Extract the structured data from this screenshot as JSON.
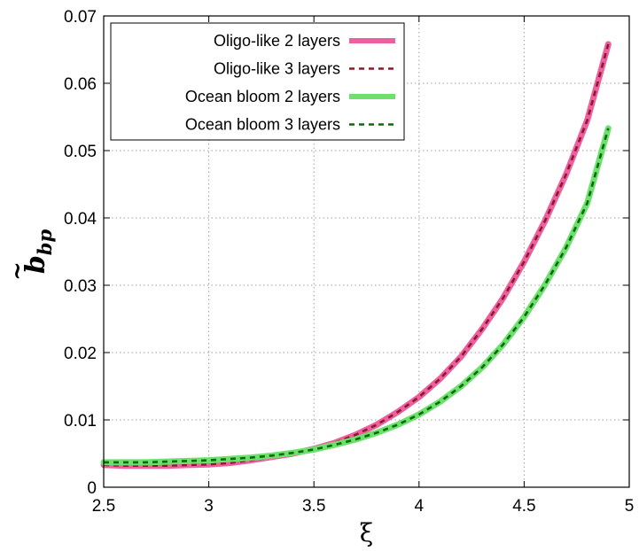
{
  "chart_data": {
    "type": "line",
    "xlabel": "ξ",
    "ylabel": {
      "base": "b",
      "tilde": "~",
      "subscript": "bp"
    },
    "xlim": [
      2.5,
      5
    ],
    "ylim": [
      0,
      0.07
    ],
    "xticks": [
      2.5,
      3,
      3.5,
      4,
      4.5,
      5
    ],
    "xtick_labels": [
      "2.5",
      "3",
      "3.5",
      "4",
      "4.5",
      "5"
    ],
    "yticks": [
      0,
      0.01,
      0.02,
      0.03,
      0.04,
      0.05,
      0.06,
      0.07
    ],
    "ytick_labels": [
      "0",
      "0.01",
      "0.02",
      "0.03",
      "0.04",
      "0.05",
      "0.06",
      "0.07"
    ],
    "grid": true,
    "legend_position": "top-left",
    "series": [
      {
        "name": "Oligo-like 2 layers",
        "color": "#ee5fa0",
        "style": "solid",
        "x": [
          2.5,
          2.6,
          2.7,
          2.8,
          2.9,
          3.0,
          3.1,
          3.2,
          3.3,
          3.4,
          3.5,
          3.6,
          3.7,
          3.8,
          3.9,
          4.0,
          4.1,
          4.2,
          4.3,
          4.4,
          4.5,
          4.6,
          4.7,
          4.8,
          4.9
        ],
        "y": [
          0.0033,
          0.0032,
          0.0032,
          0.0032,
          0.0033,
          0.0034,
          0.0036,
          0.004,
          0.0045,
          0.005,
          0.0057,
          0.0066,
          0.0078,
          0.0093,
          0.0112,
          0.0134,
          0.0161,
          0.0194,
          0.0235,
          0.0281,
          0.0335,
          0.0396,
          0.0465,
          0.0545,
          0.0658
        ]
      },
      {
        "name": "Oligo-like 3 layers",
        "color": "#8b1a2b",
        "style": "dashed",
        "x": [
          2.5,
          2.6,
          2.7,
          2.8,
          2.9,
          3.0,
          3.1,
          3.2,
          3.3,
          3.4,
          3.5,
          3.6,
          3.7,
          3.8,
          3.9,
          4.0,
          4.1,
          4.2,
          4.3,
          4.4,
          4.5,
          4.6,
          4.7,
          4.8,
          4.9
        ],
        "y": [
          0.0033,
          0.0032,
          0.0032,
          0.0032,
          0.0033,
          0.0034,
          0.0036,
          0.004,
          0.0045,
          0.005,
          0.0057,
          0.0066,
          0.0078,
          0.0093,
          0.0112,
          0.0134,
          0.0161,
          0.0194,
          0.0235,
          0.0281,
          0.0335,
          0.0396,
          0.0465,
          0.0545,
          0.0658
        ]
      },
      {
        "name": "Ocean bloom 2 layers",
        "color": "#6ee06e",
        "style": "solid",
        "x": [
          2.5,
          2.6,
          2.7,
          2.8,
          2.9,
          3.0,
          3.1,
          3.2,
          3.3,
          3.4,
          3.5,
          3.6,
          3.7,
          3.8,
          3.9,
          4.0,
          4.1,
          4.2,
          4.3,
          4.4,
          4.5,
          4.6,
          4.7,
          4.8,
          4.9
        ],
        "y": [
          0.0037,
          0.0037,
          0.0037,
          0.0038,
          0.0039,
          0.004,
          0.0042,
          0.0044,
          0.0047,
          0.0051,
          0.0056,
          0.0063,
          0.0071,
          0.0081,
          0.0093,
          0.0108,
          0.0127,
          0.015,
          0.0178,
          0.0212,
          0.0253,
          0.0301,
          0.0356,
          0.0422,
          0.0533
        ]
      },
      {
        "name": "Ocean bloom 3 layers",
        "color": "#0b6b0b",
        "style": "dashed",
        "x": [
          2.5,
          2.6,
          2.7,
          2.8,
          2.9,
          3.0,
          3.1,
          3.2,
          3.3,
          3.4,
          3.5,
          3.6,
          3.7,
          3.8,
          3.9,
          4.0,
          4.1,
          4.2,
          4.3,
          4.4,
          4.5,
          4.6,
          4.7,
          4.8,
          4.9
        ],
        "y": [
          0.0037,
          0.0037,
          0.0037,
          0.0038,
          0.0039,
          0.004,
          0.0042,
          0.0044,
          0.0047,
          0.0051,
          0.0056,
          0.0063,
          0.0071,
          0.0081,
          0.0093,
          0.0108,
          0.0127,
          0.015,
          0.0178,
          0.0212,
          0.0253,
          0.0301,
          0.0356,
          0.0422,
          0.0533
        ]
      }
    ]
  }
}
